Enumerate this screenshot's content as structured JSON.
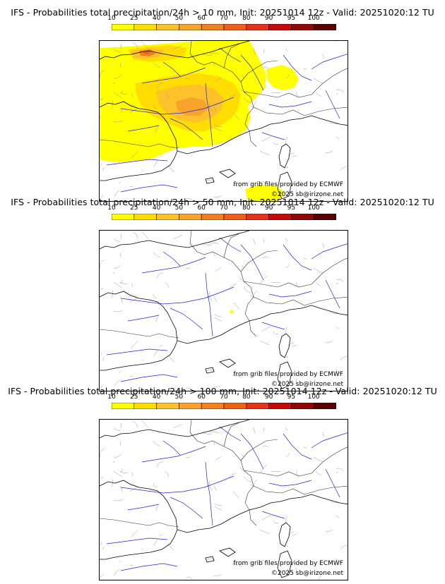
{
  "colorbar": {
    "ticks": [
      "10",
      "25",
      "40",
      "50",
      "60",
      "70",
      "80",
      "90",
      "95",
      "100"
    ],
    "colors": [
      "#ffff00",
      "#ffdd00",
      "#fcc12b",
      "#f7a32e",
      "#f08020",
      "#f15e1a",
      "#e8311b",
      "#c60a0a",
      "#8f0707",
      "#5a0202"
    ]
  },
  "panels": [
    {
      "title": "IFS - Probabilities total precipitation/24h > 10 mm, Init: 20251014 12z - Valid: 20251020:12 TU",
      "source_credit": "from grib files provided by ECMWF",
      "copyright": "©2025 sb@irizone.net"
    },
    {
      "title": "IFS - Probabilities total precipitation/24h > 50 mm, Init: 20251014 12z - Valid: 20251020:12 TU",
      "source_credit": "from grib files provided by ECMWF",
      "copyright": "©2025 sb@irizone.net"
    },
    {
      "title": "IFS - Probabilities total precipitation/24h > 100 mm, Init: 20251014 12z - Valid: 20251020:12 TU",
      "source_credit": "from grib files provided by ECMWF",
      "copyright": "©2025 sb@irizone.net"
    }
  ],
  "map": {
    "coast_color": "#000000",
    "border_color": "#9a9a9a",
    "river_color": "#2222dd"
  }
}
